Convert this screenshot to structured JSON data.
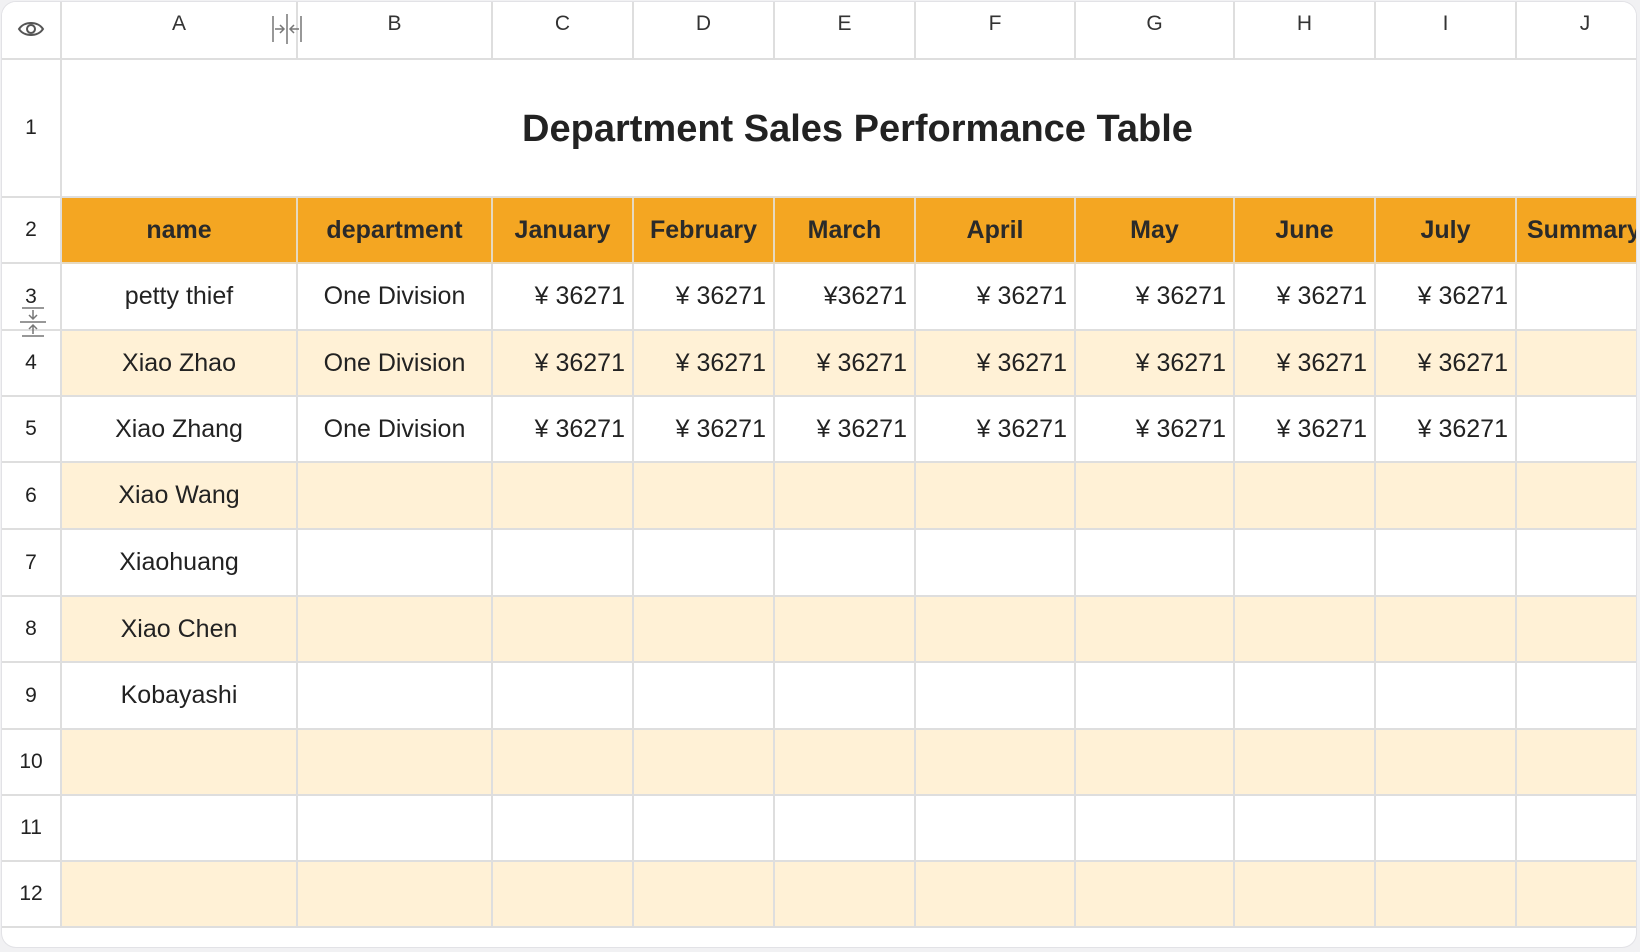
{
  "column_headers": [
    "A",
    "B",
    "C",
    "D",
    "E",
    "F",
    "G",
    "H",
    "I",
    "J"
  ],
  "row_numbers": [
    "1",
    "2",
    "3",
    "4",
    "5",
    "6",
    "7",
    "8",
    "9",
    "10",
    "11",
    "12"
  ],
  "title": "Department Sales Performance Table",
  "table_headers": [
    "name",
    "department",
    "January",
    "February",
    "March",
    "April",
    "May",
    "June",
    "July",
    "Summary"
  ],
  "rows": [
    [
      "petty thief",
      "One Division",
      "¥ 36271",
      "¥ 36271",
      "¥36271",
      "¥ 36271",
      "¥ 36271",
      "¥ 36271",
      "¥ 36271",
      ""
    ],
    [
      "Xiao Zhao",
      "One Division",
      "¥ 36271",
      "¥ 36271",
      "¥ 36271",
      "¥ 36271",
      "¥ 36271",
      "¥ 36271",
      "¥ 36271",
      ""
    ],
    [
      "Xiao Zhang",
      "One Division",
      "¥ 36271",
      "¥ 36271",
      "¥ 36271",
      "¥ 36271",
      "¥ 36271",
      "¥ 36271",
      "¥ 36271",
      ""
    ],
    [
      "Xiao Wang",
      "",
      "",
      "",
      "",
      "",
      "",
      "",
      "",
      ""
    ],
    [
      "Xiaohuang",
      "",
      "",
      "",
      "",
      "",
      "",
      "",
      "",
      ""
    ],
    [
      "Xiao Chen",
      "",
      "",
      "",
      "",
      "",
      "",
      "",
      "",
      ""
    ],
    [
      "Kobayashi",
      "",
      "",
      "",
      "",
      "",
      "",
      "",
      "",
      ""
    ],
    [
      "",
      "",
      "",
      "",
      "",
      "",
      "",
      "",
      "",
      ""
    ],
    [
      "",
      "",
      "",
      "",
      "",
      "",
      "",
      "",
      "",
      ""
    ],
    [
      "",
      "",
      "",
      "",
      "",
      "",
      "",
      "",
      "",
      ""
    ]
  ],
  "colors": {
    "header_fill": "#f4a622",
    "band_fill": "#fff1d6",
    "gridline": "#dedede"
  },
  "icons": {
    "corner": "eye-icon",
    "column_resize": "column-resize-icon",
    "row_resize": "row-resize-icon"
  }
}
